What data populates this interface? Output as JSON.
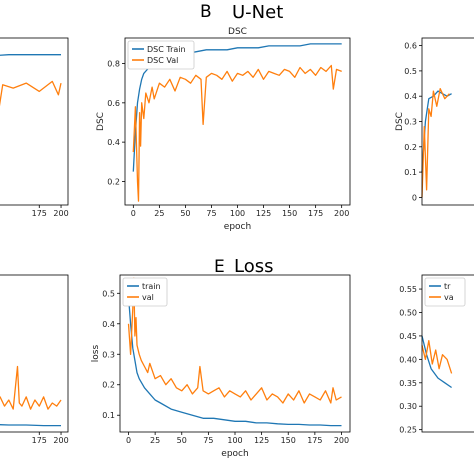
{
  "headers": {
    "top": {
      "letter": "B",
      "title": "U-Net"
    },
    "bottom": {
      "letter": "E",
      "title": "Loss"
    }
  },
  "colors": {
    "train": "#1f77b4",
    "val": "#ff7f0e"
  },
  "chart_data": [
    {
      "panel": "left-top (cropped)",
      "type": "line",
      "xlim": [
        0,
        200
      ],
      "ylim": [
        0,
        1
      ],
      "x_ticks": [
        175,
        200
      ],
      "series": [
        {
          "role": "train",
          "values_desc": "plateau ~0.90",
          "sample": [
            [
              110,
              0.89
            ],
            [
              140,
              0.9
            ],
            [
              170,
              0.9
            ],
            [
              200,
              0.9
            ]
          ]
        },
        {
          "role": "val",
          "sample": [
            [
              110,
              0.71
            ],
            [
              120,
              0.69
            ],
            [
              127,
              0.52
            ],
            [
              133,
              0.72
            ],
            [
              145,
              0.7
            ],
            [
              160,
              0.73
            ],
            [
              175,
              0.68
            ],
            [
              190,
              0.74
            ],
            [
              197,
              0.66
            ],
            [
              200,
              0.73
            ]
          ]
        }
      ]
    },
    {
      "panel": "B",
      "type": "line",
      "title": "DSC",
      "xlabel": "epoch",
      "ylabel": "DSC",
      "xlim": [
        -8,
        208
      ],
      "ylim": [
        0.08,
        0.93
      ],
      "x_ticks": [
        0,
        25,
        50,
        75,
        100,
        125,
        150,
        175,
        200
      ],
      "y_ticks": [
        0.2,
        0.4,
        0.6,
        0.8
      ],
      "legend": {
        "position": "top-left",
        "entries": [
          "DSC Train",
          "DSC Val"
        ]
      },
      "series": [
        {
          "name": "DSC Train",
          "role": "train",
          "x": [
            0,
            2,
            4,
            6,
            8,
            10,
            15,
            20,
            25,
            30,
            40,
            50,
            60,
            70,
            80,
            90,
            100,
            110,
            120,
            130,
            140,
            150,
            160,
            170,
            180,
            190,
            200
          ],
          "y": [
            0.25,
            0.45,
            0.6,
            0.67,
            0.72,
            0.75,
            0.78,
            0.8,
            0.82,
            0.83,
            0.84,
            0.85,
            0.86,
            0.87,
            0.87,
            0.87,
            0.88,
            0.88,
            0.88,
            0.89,
            0.89,
            0.89,
            0.89,
            0.9,
            0.9,
            0.9,
            0.9
          ]
        },
        {
          "name": "DSC Val",
          "role": "val",
          "x": [
            0,
            2,
            4,
            5,
            6,
            7,
            8,
            10,
            12,
            15,
            18,
            20,
            25,
            30,
            35,
            40,
            45,
            50,
            55,
            60,
            65,
            67,
            70,
            75,
            80,
            85,
            90,
            95,
            100,
            105,
            110,
            115,
            120,
            125,
            130,
            135,
            140,
            145,
            150,
            155,
            160,
            165,
            170,
            175,
            180,
            185,
            190,
            192,
            195,
            200
          ],
          "y": [
            0.35,
            0.58,
            0.2,
            0.1,
            0.55,
            0.38,
            0.6,
            0.52,
            0.65,
            0.6,
            0.68,
            0.62,
            0.7,
            0.68,
            0.72,
            0.66,
            0.73,
            0.72,
            0.7,
            0.74,
            0.72,
            0.49,
            0.73,
            0.75,
            0.74,
            0.72,
            0.76,
            0.71,
            0.75,
            0.74,
            0.76,
            0.73,
            0.77,
            0.72,
            0.76,
            0.75,
            0.74,
            0.77,
            0.76,
            0.73,
            0.78,
            0.75,
            0.77,
            0.74,
            0.78,
            0.76,
            0.79,
            0.67,
            0.77,
            0.76
          ]
        }
      ]
    },
    {
      "panel": "right-top (cropped)",
      "type": "line",
      "ylabel": "DSC",
      "xlim": [
        0,
        200
      ],
      "ylim": [
        -0.03,
        0.63
      ],
      "y_ticks": [
        0.0,
        0.1,
        0.2,
        0.3,
        0.4,
        0.5,
        0.6
      ],
      "series": [
        {
          "role": "train",
          "sample": [
            [
              0,
              0.1
            ],
            [
              3,
              0.3
            ],
            [
              6,
              0.39
            ],
            [
              10,
              0.4
            ],
            [
              14,
              0.42
            ],
            [
              18,
              0.41
            ],
            [
              22,
              0.4
            ],
            [
              26,
              0.41
            ]
          ]
        },
        {
          "role": "val",
          "sample": [
            [
              0,
              0.0
            ],
            [
              2,
              0.28
            ],
            [
              4,
              0.03
            ],
            [
              6,
              0.35
            ],
            [
              8,
              0.32
            ],
            [
              10,
              0.42
            ],
            [
              13,
              0.36
            ],
            [
              16,
              0.43
            ],
            [
              20,
              0.39
            ],
            [
              24,
              0.41
            ]
          ]
        }
      ]
    },
    {
      "panel": "left-bottom (cropped)",
      "type": "line",
      "xlim": [
        0,
        200
      ],
      "x_ticks": [
        175,
        200
      ],
      "series": [
        {
          "role": "train",
          "values_desc": "flat ~0.07"
        },
        {
          "role": "val",
          "values_desc": "noisy ~0.13 with spike ~0.26 near epoch 150"
        }
      ]
    },
    {
      "panel": "E",
      "type": "line",
      "xlabel": "epoch",
      "ylabel": "loss",
      "xlim": [
        -8,
        208
      ],
      "ylim": [
        0.045,
        0.56
      ],
      "x_ticks": [
        0,
        25,
        50,
        75,
        100,
        125,
        150,
        175,
        200
      ],
      "y_ticks": [
        0.1,
        0.2,
        0.3,
        0.4,
        0.5
      ],
      "legend": {
        "position": "top-left",
        "entries": [
          "train",
          "val"
        ]
      },
      "series": [
        {
          "name": "train",
          "role": "train",
          "x": [
            0,
            2,
            4,
            6,
            8,
            10,
            15,
            20,
            25,
            30,
            40,
            50,
            60,
            70,
            80,
            90,
            100,
            110,
            120,
            130,
            140,
            150,
            160,
            170,
            180,
            190,
            200
          ],
          "y": [
            0.49,
            0.4,
            0.32,
            0.28,
            0.24,
            0.22,
            0.19,
            0.17,
            0.15,
            0.14,
            0.12,
            0.11,
            0.1,
            0.09,
            0.09,
            0.085,
            0.08,
            0.08,
            0.075,
            0.075,
            0.072,
            0.07,
            0.07,
            0.068,
            0.068,
            0.066,
            0.066
          ]
        },
        {
          "name": "val",
          "role": "val",
          "x": [
            0,
            2,
            4,
            5,
            6,
            7,
            8,
            10,
            12,
            15,
            18,
            20,
            25,
            30,
            35,
            40,
            45,
            50,
            55,
            60,
            65,
            67,
            70,
            75,
            80,
            85,
            90,
            95,
            100,
            105,
            110,
            115,
            120,
            125,
            130,
            135,
            140,
            145,
            150,
            155,
            160,
            165,
            170,
            175,
            180,
            185,
            190,
            192,
            195,
            200
          ],
          "y": [
            0.4,
            0.3,
            0.45,
            0.55,
            0.36,
            0.42,
            0.33,
            0.3,
            0.28,
            0.26,
            0.24,
            0.27,
            0.22,
            0.23,
            0.2,
            0.22,
            0.19,
            0.18,
            0.2,
            0.17,
            0.19,
            0.26,
            0.18,
            0.17,
            0.18,
            0.19,
            0.16,
            0.18,
            0.17,
            0.16,
            0.18,
            0.15,
            0.17,
            0.19,
            0.15,
            0.17,
            0.16,
            0.14,
            0.17,
            0.15,
            0.18,
            0.14,
            0.17,
            0.16,
            0.15,
            0.18,
            0.14,
            0.19,
            0.15,
            0.16
          ]
        }
      ]
    },
    {
      "panel": "right-bottom (cropped)",
      "type": "line",
      "xlim": [
        0,
        200
      ],
      "ylim": [
        0.245,
        0.58
      ],
      "y_ticks": [
        0.25,
        0.3,
        0.35,
        0.4,
        0.45,
        0.5,
        0.55
      ],
      "legend": {
        "position": "top-left",
        "entries": [
          "tr",
          "va"
        ]
      },
      "series": [
        {
          "role": "train",
          "sample": [
            [
              0,
              0.45
            ],
            [
              4,
              0.41
            ],
            [
              8,
              0.38
            ],
            [
              14,
              0.36
            ],
            [
              20,
              0.35
            ],
            [
              26,
              0.34
            ]
          ]
        },
        {
          "role": "val",
          "sample": [
            [
              0,
              0.43
            ],
            [
              3,
              0.4
            ],
            [
              6,
              0.44
            ],
            [
              9,
              0.39
            ],
            [
              12,
              0.42
            ],
            [
              15,
              0.38
            ],
            [
              18,
              0.41
            ],
            [
              22,
              0.4
            ],
            [
              26,
              0.37
            ]
          ]
        }
      ]
    }
  ]
}
